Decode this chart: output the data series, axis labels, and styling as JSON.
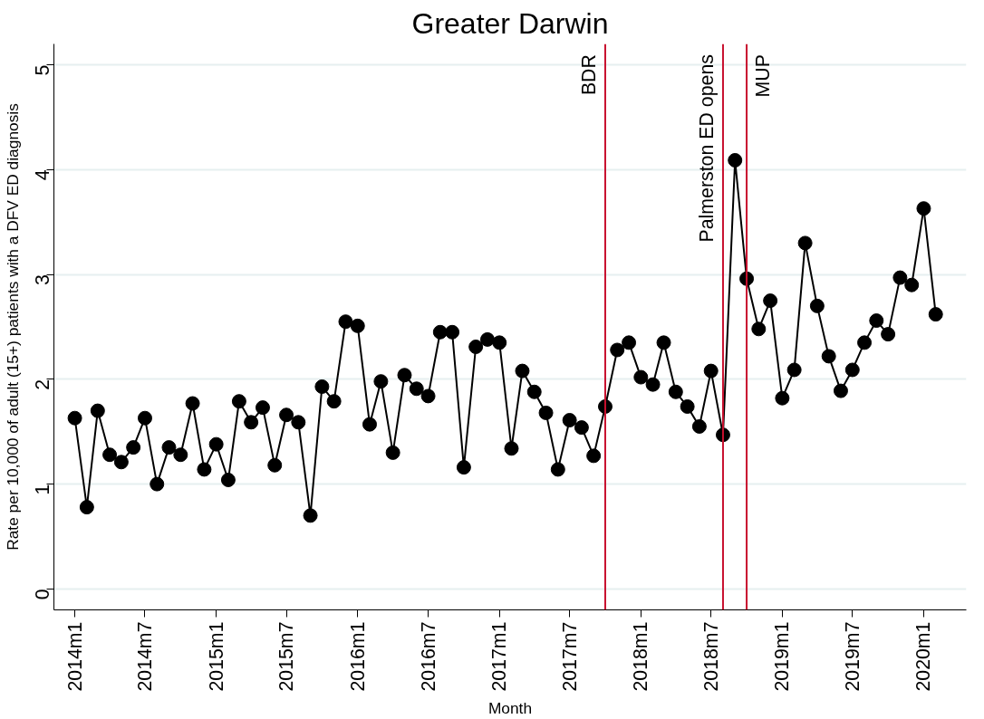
{
  "chart_data": {
    "type": "line",
    "title": "Greater Darwin",
    "xlabel": "Month",
    "ylabel": "Rate per 10,000 of adult (15+) patients with a DFV ED diagnosis",
    "x": [
      "2014-01",
      "2014-02",
      "2014-03",
      "2014-04",
      "2014-05",
      "2014-06",
      "2014-07",
      "2014-08",
      "2014-09",
      "2014-10",
      "2014-11",
      "2014-12",
      "2015-01",
      "2015-02",
      "2015-03",
      "2015-04",
      "2015-05",
      "2015-06",
      "2015-07",
      "2015-08",
      "2015-09",
      "2015-10",
      "2015-11",
      "2015-12",
      "2016-01",
      "2016-02",
      "2016-03",
      "2016-04",
      "2016-05",
      "2016-06",
      "2016-07",
      "2016-08",
      "2016-09",
      "2016-10",
      "2016-11",
      "2016-12",
      "2017-01",
      "2017-02",
      "2017-03",
      "2017-04",
      "2017-05",
      "2017-06",
      "2017-07",
      "2017-08",
      "2017-09",
      "2017-10",
      "2017-11",
      "2017-12",
      "2018-01",
      "2018-02",
      "2018-03",
      "2018-04",
      "2018-05",
      "2018-06",
      "2018-07",
      "2018-08",
      "2018-09",
      "2018-10",
      "2018-11",
      "2018-12",
      "2019-01",
      "2019-02",
      "2019-03",
      "2019-04",
      "2019-05",
      "2019-06",
      "2019-07",
      "2019-08",
      "2019-09",
      "2019-10",
      "2019-11",
      "2019-12",
      "2020-01",
      "2020-02"
    ],
    "series": [
      {
        "color": "#000000",
        "values": [
          1.63,
          0.78,
          1.7,
          1.28,
          1.21,
          1.35,
          1.63,
          1.0,
          1.35,
          1.28,
          1.77,
          1.14,
          1.38,
          1.04,
          1.79,
          1.59,
          1.73,
          1.18,
          1.66,
          1.59,
          0.7,
          1.93,
          1.79,
          2.55,
          2.51,
          1.57,
          1.98,
          1.3,
          2.04,
          1.91,
          1.84,
          2.45,
          2.45,
          1.16,
          2.31,
          2.38,
          2.35,
          1.34,
          2.08,
          1.88,
          1.68,
          1.14,
          1.61,
          1.54,
          1.27,
          1.74,
          2.28,
          2.35,
          2.02,
          1.95,
          2.35,
          1.88,
          1.74,
          1.55,
          2.08,
          1.47,
          4.09,
          2.96,
          2.48,
          2.75,
          1.82,
          2.09,
          3.3,
          2.7,
          2.22,
          1.89,
          2.09,
          2.35,
          2.56,
          2.43,
          2.97,
          2.9,
          3.63,
          2.62
        ]
      }
    ],
    "marker": "circle",
    "line_style": "solid",
    "grid": "y",
    "xlim": [
      "2013-11-08",
      "2020-04-20"
    ],
    "xticks": [
      {
        "value": "2014-01",
        "label": "2014m1"
      },
      {
        "value": "2014-07",
        "label": "2014m7"
      },
      {
        "value": "2015-01",
        "label": "2015m1"
      },
      {
        "value": "2015-07",
        "label": "2015m7"
      },
      {
        "value": "2016-01",
        "label": "2016m1"
      },
      {
        "value": "2016-07",
        "label": "2016m7"
      },
      {
        "value": "2017-01",
        "label": "2017m1"
      },
      {
        "value": "2017-07",
        "label": "2017m7"
      },
      {
        "value": "2018-01",
        "label": "2018m1"
      },
      {
        "value": "2018-07",
        "label": "2018m7"
      },
      {
        "value": "2019-01",
        "label": "2019m1"
      },
      {
        "value": "2019-07",
        "label": "2019m7"
      },
      {
        "value": "2020-01",
        "label": "2020m1"
      }
    ],
    "ylim": [
      -0.2,
      5.2
    ],
    "yticks": [
      0,
      1,
      2,
      3,
      4,
      5
    ],
    "ref_lines": [
      {
        "axis": "x",
        "value": "2017-10",
        "label": "BDR",
        "color": "#c8102e"
      },
      {
        "axis": "x",
        "value": "2018-08",
        "label": "Palmerston ED opens",
        "color": "#c8102e"
      },
      {
        "axis": "x",
        "value": "2018-10",
        "label": "MUP",
        "color": "#c8102e"
      }
    ]
  }
}
